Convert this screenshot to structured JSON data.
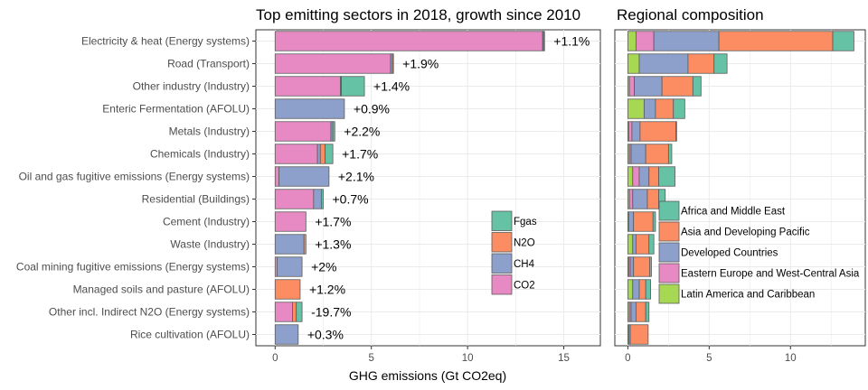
{
  "chart_data": [
    {
      "type": "bar",
      "orientation": "horizontal",
      "stacked": true,
      "title": "Top emitting sectors in 2018, growth since 2010",
      "xlabel": "GHG emissions (Gt CO2eq)",
      "ylabel": "",
      "xlim": [
        -1,
        16.9
      ],
      "x_ticks": [
        "0",
        "5",
        "10",
        "15"
      ],
      "grid": true,
      "legend_position": "right-center",
      "categories": [
        "Electricity & heat (Energy systems)",
        "Road  (Transport)",
        "Other industry (Industry)",
        "Enteric Fermentation (AFOLU)",
        "Metals (Industry)",
        "Chemicals (Industry)",
        "Oil and gas fugitive emissions (Energy systems)",
        "Residential (Buildings)",
        "Cement (Industry)",
        "Waste (Industry)",
        "Coal mining fugitive emissions (Energy systems)",
        "Managed soils and pasture (AFOLU)",
        "Other incl. Indirect N2O (Energy systems)",
        "Rice cultivation (AFOLU)"
      ],
      "series": [
        {
          "name": "CO2",
          "color": "#e78ac3",
          "values": [
            13.9,
            6.0,
            3.4,
            0.0,
            2.9,
            2.2,
            0.2,
            2.0,
            1.6,
            0.0,
            0.1,
            0.0,
            0.9,
            0.0
          ]
        },
        {
          "name": "CH4",
          "color": "#8da0cb",
          "values": [
            0.05,
            0.1,
            0.02,
            3.6,
            0.1,
            0.15,
            2.6,
            0.4,
            0.0,
            1.5,
            1.3,
            0.0,
            0.0,
            1.2
          ]
        },
        {
          "name": "N2O",
          "color": "#fc8d62",
          "values": [
            0.05,
            0.05,
            0.02,
            0.0,
            0.0,
            0.25,
            0.0,
            0.0,
            0.0,
            0.1,
            0.0,
            1.3,
            0.2,
            0.0
          ]
        },
        {
          "name": "Fgas",
          "color": "#66c2a5",
          "values": [
            0.0,
            0.0,
            1.2,
            0.0,
            0.1,
            0.4,
            0.0,
            0.1,
            0.0,
            0.0,
            0.0,
            0.0,
            0.3,
            0.0
          ]
        }
      ],
      "growth_labels": [
        "+1.1%",
        "+1.9%",
        "+1.4%",
        "+0.9%",
        "+2.2%",
        "+1.7%",
        "+2.1%",
        "+0.7%",
        "+1.7%",
        "+1.3%",
        "+2%",
        "+1.2%",
        "-19.7%",
        "+0.3%"
      ]
    },
    {
      "type": "bar",
      "orientation": "horizontal",
      "stacked": true,
      "title": "Regional composition",
      "xlabel": "",
      "xlim": [
        -0.8,
        14.6
      ],
      "x_ticks": [
        "0",
        "5",
        "10"
      ],
      "grid": true,
      "legend_position": "right-center",
      "categories_shared_with_left_panel": true,
      "series": [
        {
          "name": "Latin America and Caribbean",
          "color": "#a6d854",
          "values": [
            0.5,
            0.7,
            0.1,
            1.0,
            0.05,
            0.1,
            0.3,
            0.1,
            0.05,
            0.3,
            0.05,
            0.3,
            0.1,
            0.05
          ]
        },
        {
          "name": "Eastern Europe and West-Central Asia",
          "color": "#e78ac3",
          "values": [
            1.1,
            0.0,
            0.3,
            0.0,
            0.2,
            0.1,
            0.4,
            0.2,
            0.0,
            0.0,
            0.1,
            0.0,
            0.1,
            0.0
          ]
        },
        {
          "name": "Developed Countries",
          "color": "#8da0cb",
          "values": [
            4.0,
            3.0,
            1.7,
            0.7,
            0.5,
            0.9,
            0.6,
            0.9,
            0.3,
            0.2,
            0.2,
            0.4,
            0.3,
            0.1
          ]
        },
        {
          "name": "Asia and Developing Pacific",
          "color": "#fc8d62",
          "values": [
            7.0,
            1.6,
            1.9,
            1.1,
            2.2,
            1.4,
            0.6,
            0.7,
            1.2,
            0.8,
            1.0,
            0.4,
            0.6,
            1.1
          ]
        },
        {
          "name": "Africa and Middle East",
          "color": "#66c2a5",
          "values": [
            1.3,
            0.8,
            0.5,
            0.7,
            0.05,
            0.2,
            1.0,
            0.4,
            0.15,
            0.3,
            0.1,
            0.3,
            0.2,
            0.0
          ]
        }
      ]
    }
  ],
  "legends": {
    "left": {
      "items": [
        "Fgas",
        "N2O",
        "CH4",
        "CO2"
      ],
      "colors": [
        "#66c2a5",
        "#fc8d62",
        "#8da0cb",
        "#e78ac3"
      ]
    },
    "right": {
      "items": [
        "Africa and Middle East",
        "Asia and Developing Pacific",
        "Developed Countries",
        "Eastern Europe and West-Central Asia",
        "Latin America and Caribbean"
      ],
      "colors": [
        "#66c2a5",
        "#fc8d62",
        "#8da0cb",
        "#e78ac3",
        "#a6d854"
      ]
    }
  }
}
